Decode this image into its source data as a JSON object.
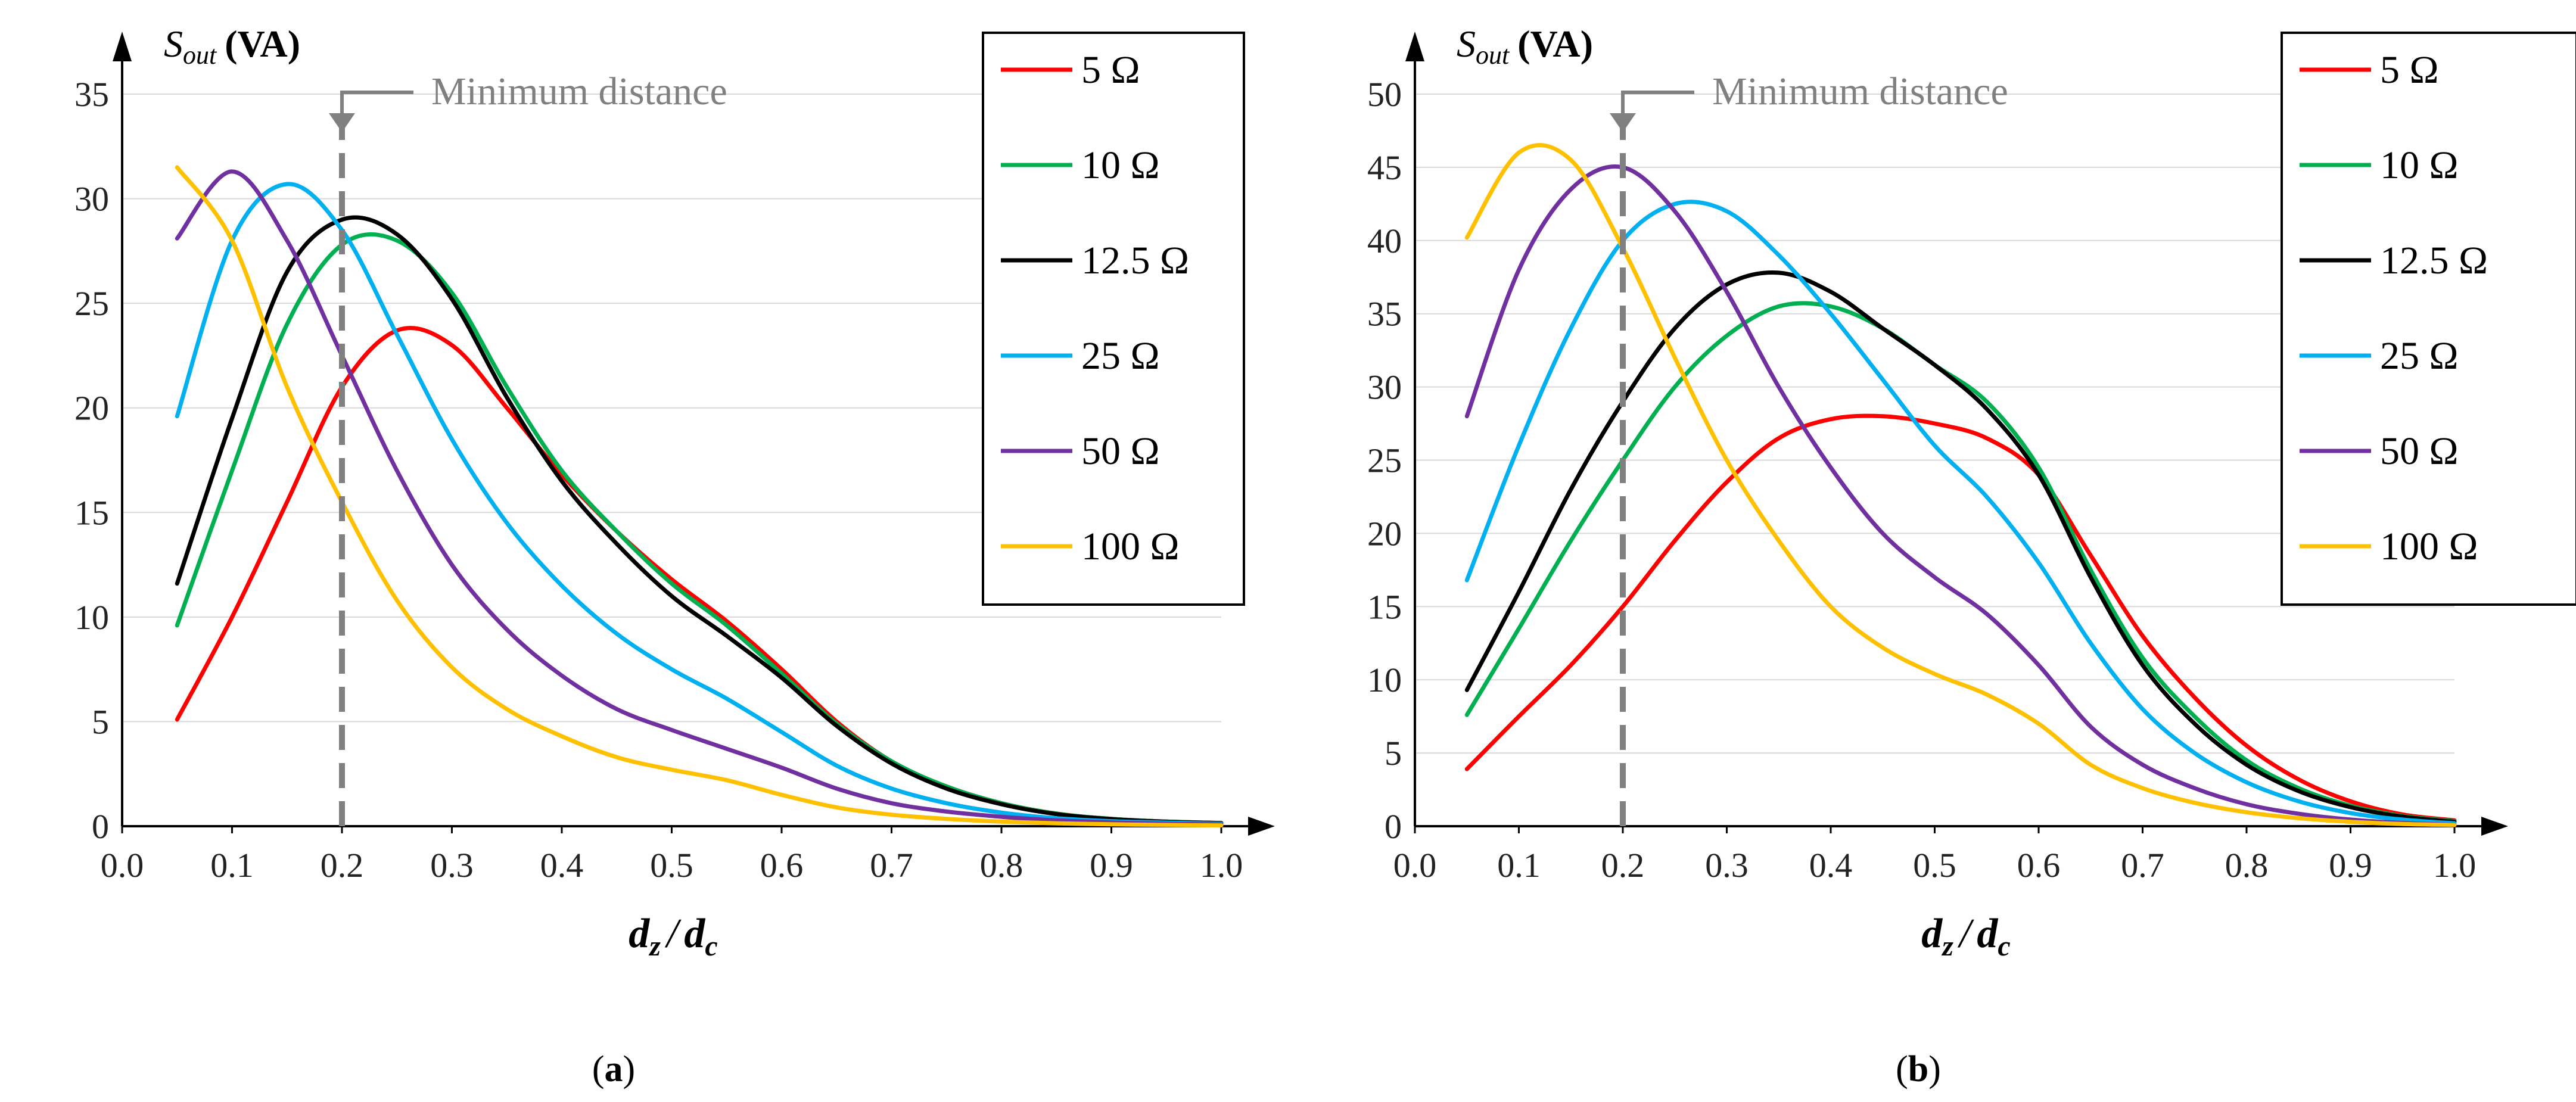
{
  "chart_data": [
    {
      "type": "line",
      "panel_label": "a",
      "title": "",
      "ylabel_main": "S",
      "ylabel_sub": "out",
      "ylabel_unit": "(VA)",
      "xlabel_num": "d",
      "xlabel_num_sub": "z",
      "xlabel_sep": "/",
      "xlabel_den": "d",
      "xlabel_den_sub": "c",
      "xlim": [
        0.0,
        1.0
      ],
      "ylim": [
        0,
        35
      ],
      "x_ticks": [
        "0.0",
        "0.1",
        "0.2",
        "0.3",
        "0.4",
        "0.5",
        "0.6",
        "0.7",
        "0.8",
        "0.9",
        "1.0"
      ],
      "y_ticks": [
        "0",
        "5",
        "10",
        "15",
        "20",
        "25",
        "30",
        "35"
      ],
      "grid": "horizontal",
      "legend_position": "top-right",
      "annotation": {
        "text": "Minimum distance",
        "x": 0.2
      },
      "x": [
        0.05,
        0.1,
        0.15,
        0.2,
        0.25,
        0.3,
        0.35,
        0.4,
        0.45,
        0.5,
        0.55,
        0.6,
        0.65,
        0.7,
        0.75,
        0.8,
        0.85,
        0.9,
        0.95,
        1.0
      ],
      "series": [
        {
          "name": "5 Ω",
          "color": "#ff0000",
          "values": [
            5.1,
            10,
            15.5,
            21,
            23.7,
            23,
            20,
            16.8,
            14.1,
            11.8,
            9.8,
            7.5,
            5,
            3.1,
            1.9,
            1.1,
            0.6,
            0.35,
            0.22,
            0.15
          ]
        },
        {
          "name": "10 Ω",
          "color": "#00b050",
          "values": [
            9.6,
            17,
            24,
            27.8,
            28,
            25.5,
            21,
            17,
            14.1,
            11.6,
            9.6,
            7.3,
            4.9,
            3.1,
            1.9,
            1.1,
            0.6,
            0.35,
            0.22,
            0.15
          ]
        },
        {
          "name": "12.5 Ω",
          "color": "#000000",
          "values": [
            11.6,
            19.5,
            26.5,
            29,
            28.3,
            25.2,
            20.5,
            16.5,
            13.5,
            11,
            9.1,
            7.1,
            4.8,
            3,
            1.8,
            1.05,
            0.58,
            0.34,
            0.21,
            0.15
          ]
        },
        {
          "name": "25 Ω",
          "color": "#00b0f0",
          "values": [
            19.6,
            28,
            30.7,
            28.5,
            23.5,
            18.5,
            14.5,
            11.5,
            9.2,
            7.5,
            6.1,
            4.5,
            2.9,
            1.8,
            1.1,
            0.65,
            0.38,
            0.24,
            0.17,
            0.12
          ]
        },
        {
          "name": "50 Ω",
          "color": "#7030a0",
          "values": [
            28.1,
            31.3,
            28,
            22.5,
            17,
            12.5,
            9.4,
            7.2,
            5.6,
            4.6,
            3.7,
            2.8,
            1.8,
            1.1,
            0.7,
            0.45,
            0.28,
            0.18,
            0.12,
            0.08
          ]
        },
        {
          "name": "100 Ω",
          "color": "#ffc000",
          "values": [
            31.5,
            28,
            21,
            15.5,
            10.8,
            7.6,
            5.6,
            4.3,
            3.3,
            2.7,
            2.2,
            1.5,
            0.9,
            0.55,
            0.35,
            0.22,
            0.14,
            0.09,
            0.06,
            0.04
          ]
        }
      ]
    },
    {
      "type": "line",
      "panel_label": "b",
      "title": "",
      "ylabel_main": "S",
      "ylabel_sub": "out",
      "ylabel_unit": "(VA)",
      "xlabel_num": "d",
      "xlabel_num_sub": "z",
      "xlabel_sep": "/",
      "xlabel_den": "d",
      "xlabel_den_sub": "c",
      "xlim": [
        0.0,
        1.0
      ],
      "ylim": [
        0,
        50
      ],
      "x_ticks": [
        "0.0",
        "0.1",
        "0.2",
        "0.3",
        "0.4",
        "0.5",
        "0.6",
        "0.7",
        "0.8",
        "0.9",
        "1.0"
      ],
      "y_ticks": [
        "0",
        "5",
        "10",
        "15",
        "20",
        "25",
        "30",
        "35",
        "40",
        "45",
        "50"
      ],
      "grid": "horizontal",
      "legend_position": "top-right",
      "annotation": {
        "text": "Minimum distance",
        "x": 0.2
      },
      "x": [
        0.05,
        0.1,
        0.15,
        0.2,
        0.25,
        0.3,
        0.35,
        0.4,
        0.45,
        0.5,
        0.55,
        0.6,
        0.65,
        0.7,
        0.75,
        0.8,
        0.85,
        0.9,
        0.95,
        1.0
      ],
      "series": [
        {
          "name": "5 Ω",
          "color": "#ff0000",
          "values": [
            3.9,
            7.5,
            11,
            15,
            19.5,
            23.5,
            26.5,
            27.8,
            28,
            27.5,
            26.5,
            24,
            18.5,
            13,
            8.8,
            5.5,
            3.2,
            1.7,
            0.8,
            0.4
          ]
        },
        {
          "name": "10 Ω",
          "color": "#00b050",
          "values": [
            7.6,
            13.5,
            19.5,
            25,
            30,
            33.5,
            35.5,
            35.5,
            34,
            31.5,
            29,
            24.5,
            17.5,
            11.5,
            7.5,
            4.5,
            2.6,
            1.4,
            0.7,
            0.35
          ]
        },
        {
          "name": "12.5 Ω",
          "color": "#000000",
          "values": [
            9.3,
            16,
            23,
            29,
            34,
            37,
            37.8,
            36.5,
            34,
            31.5,
            28.5,
            24,
            17,
            11,
            7,
            4.2,
            2.4,
            1.3,
            0.65,
            0.3
          ]
        },
        {
          "name": "25 Ω",
          "color": "#00b0f0",
          "values": [
            16.8,
            26,
            34,
            40,
            42.5,
            42,
            39,
            35,
            30.5,
            26,
            22.5,
            18,
            12.5,
            8,
            5,
            3,
            1.7,
            0.9,
            0.45,
            0.2
          ]
        },
        {
          "name": "50 Ω",
          "color": "#7030a0",
          "values": [
            28,
            38,
            43.5,
            45,
            42,
            36.5,
            30,
            24.5,
            20,
            17,
            14.5,
            11,
            6.8,
            4.2,
            2.6,
            1.5,
            0.85,
            0.45,
            0.22,
            0.1
          ]
        },
        {
          "name": "100 Ω",
          "color": "#ffc000",
          "values": [
            40.2,
            46,
            45.5,
            39.5,
            32,
            25,
            19.5,
            15,
            12.2,
            10.4,
            9,
            7,
            4.2,
            2.6,
            1.6,
            0.95,
            0.55,
            0.3,
            0.15,
            0.08
          ]
        }
      ]
    }
  ]
}
